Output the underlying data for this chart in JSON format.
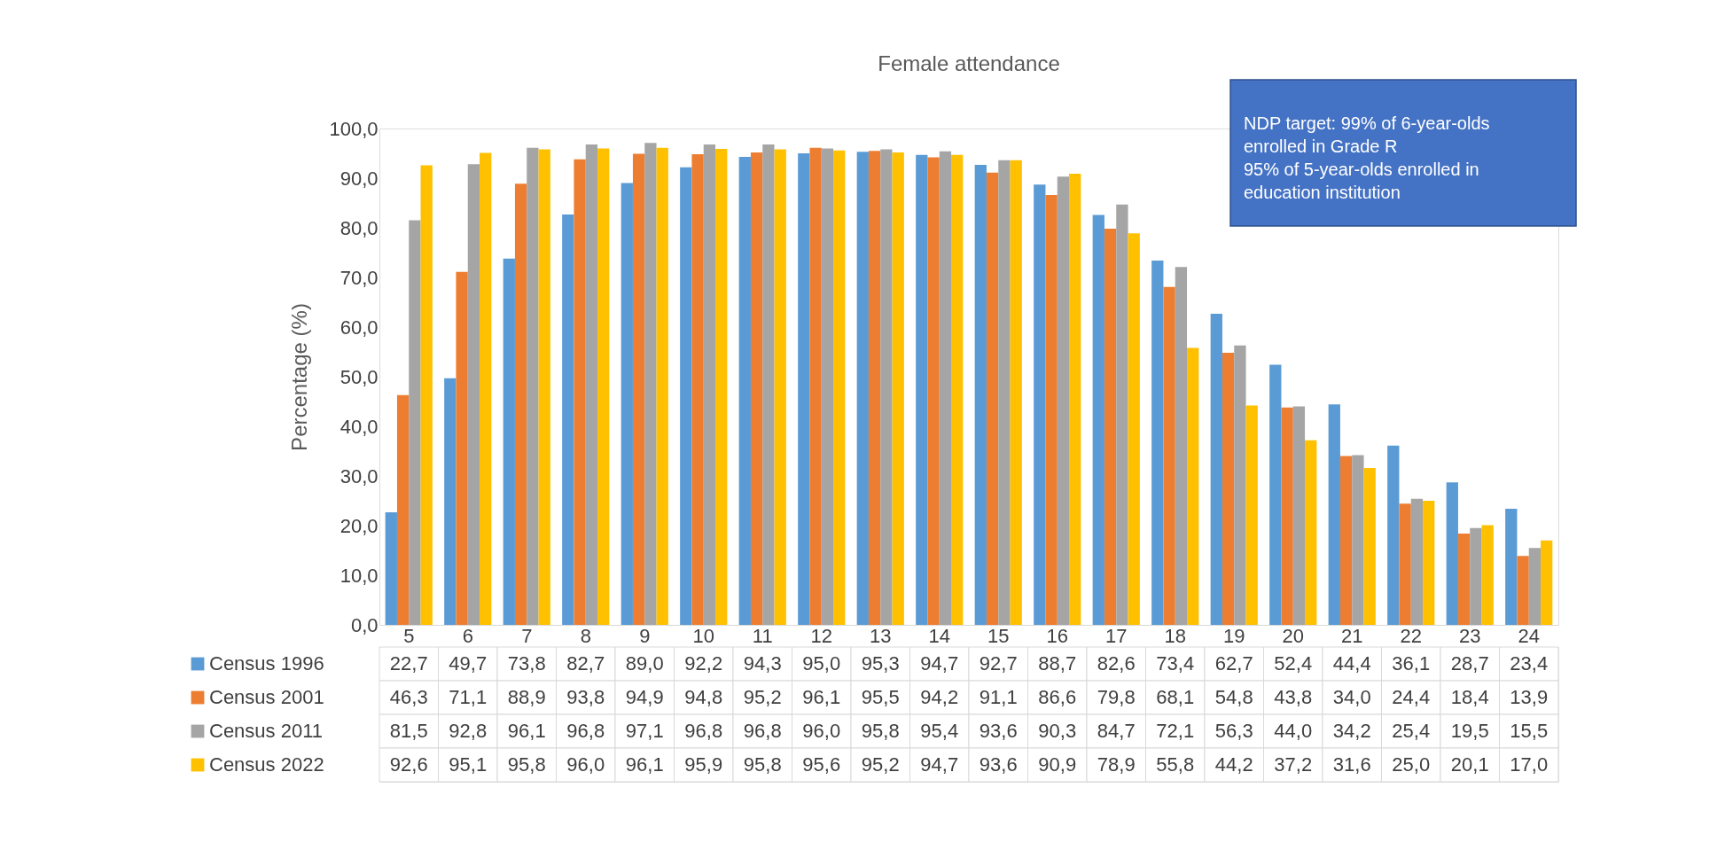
{
  "chart_data": {
    "type": "bar",
    "title": "Female attendance",
    "ylabel": "Percentage (%)",
    "categories": [
      "5",
      "6",
      "7",
      "8",
      "9",
      "10",
      "11",
      "12",
      "13",
      "14",
      "15",
      "16",
      "17",
      "18",
      "19",
      "20",
      "21",
      "22",
      "23",
      "24"
    ],
    "series": [
      {
        "name": "Census 1996",
        "color": "#5b9bd5",
        "values": [
          22.7,
          49.7,
          73.8,
          82.7,
          89.0,
          92.2,
          94.3,
          95.0,
          95.3,
          94.7,
          92.7,
          88.7,
          82.6,
          73.4,
          62.7,
          52.4,
          44.4,
          36.1,
          28.7,
          23.4
        ],
        "value_labels": [
          "22,7",
          "49,7",
          "73,8",
          "82,7",
          "89,0",
          "92,2",
          "94,3",
          "95,0",
          "95,3",
          "94,7",
          "92,7",
          "88,7",
          "82,6",
          "73,4",
          "62,7",
          "52,4",
          "44,4",
          "36,1",
          "28,7",
          "23,4"
        ]
      },
      {
        "name": "Census 2001",
        "color": "#ed7d31",
        "values": [
          46.3,
          71.1,
          88.9,
          93.8,
          94.9,
          94.8,
          95.2,
          96.1,
          95.5,
          94.2,
          91.1,
          86.6,
          79.8,
          68.1,
          54.8,
          43.8,
          34.0,
          24.4,
          18.4,
          13.9
        ],
        "value_labels": [
          "46,3",
          "71,1",
          "88,9",
          "93,8",
          "94,9",
          "94,8",
          "95,2",
          "96,1",
          "95,5",
          "94,2",
          "91,1",
          "86,6",
          "79,8",
          "68,1",
          "54,8",
          "43,8",
          "34,0",
          "24,4",
          "18,4",
          "13,9"
        ]
      },
      {
        "name": "Census 2011",
        "color": "#a5a5a5",
        "values": [
          81.5,
          92.8,
          96.1,
          96.8,
          97.1,
          96.8,
          96.8,
          96.0,
          95.8,
          95.4,
          93.6,
          90.3,
          84.7,
          72.1,
          56.3,
          44.0,
          34.2,
          25.4,
          19.5,
          15.5
        ],
        "value_labels": [
          "81,5",
          "92,8",
          "96,1",
          "96,8",
          "97,1",
          "96,8",
          "96,8",
          "96,0",
          "95,8",
          "95,4",
          "93,6",
          "90,3",
          "84,7",
          "72,1",
          "56,3",
          "44,0",
          "34,2",
          "25,4",
          "19,5",
          "15,5"
        ]
      },
      {
        "name": "Census 2022",
        "color": "#ffc000",
        "values": [
          92.6,
          95.1,
          95.8,
          96.0,
          96.1,
          95.9,
          95.8,
          95.6,
          95.2,
          94.7,
          93.6,
          90.9,
          78.9,
          55.8,
          44.2,
          37.2,
          31.6,
          25.0,
          20.1,
          17.0
        ],
        "value_labels": [
          "92,6",
          "95,1",
          "95,8",
          "96,0",
          "96,1",
          "95,9",
          "95,8",
          "95,6",
          "95,2",
          "94,7",
          "93,6",
          "90,9",
          "78,9",
          "55,8",
          "44,2",
          "37,2",
          "31,6",
          "25,0",
          "20,1",
          "17,0"
        ]
      }
    ],
    "ylim": [
      0,
      100
    ],
    "yticks": [
      {
        "value": 0,
        "label": "0,0"
      },
      {
        "value": 10,
        "label": "10,0"
      },
      {
        "value": 20,
        "label": "20,0"
      },
      {
        "value": 30,
        "label": "30,0"
      },
      {
        "value": 40,
        "label": "40,0"
      },
      {
        "value": 50,
        "label": "50,0"
      },
      {
        "value": 60,
        "label": "60,0"
      },
      {
        "value": 70,
        "label": "70,0"
      },
      {
        "value": 80,
        "label": "80,0"
      },
      {
        "value": 90,
        "label": "90,0"
      },
      {
        "value": 100,
        "label": "100,0"
      }
    ],
    "annotations": [
      "NDP target: 99% of 6-year-olds enrolled in Grade R",
      "95% of 5-year-olds enrolled in education institution"
    ],
    "legend": "bottom",
    "grid": false
  }
}
